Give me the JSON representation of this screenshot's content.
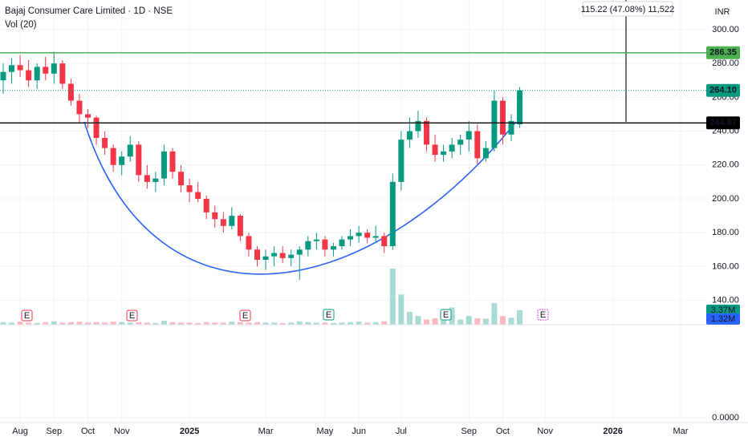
{
  "chart_data": {
    "type": "candlestick",
    "title": "Bajaj Consumer Care Limited · 1D · NSE",
    "subtitle": "Vol (20)",
    "currency": "INR",
    "measure_label": "115.22 (47.08%) 11,522",
    "categories": [
      null,
      null,
      "Aug",
      null,
      null,
      null,
      "Sep",
      null,
      null,
      null,
      "Oct",
      null,
      null,
      null,
      "Nov",
      null,
      null,
      null,
      null,
      null,
      null,
      null,
      "2025",
      null,
      null,
      null,
      null,
      null,
      null,
      null,
      null,
      "Mar",
      null,
      null,
      null,
      null,
      null,
      null,
      "May",
      null,
      null,
      null,
      "Jun",
      null,
      null,
      null,
      null,
      "Jul",
      null,
      null,
      null,
      null,
      null,
      null,
      null,
      "Sep",
      null,
      null,
      null,
      "Oct",
      null,
      null,
      null,
      null,
      "Nov",
      null,
      null,
      null,
      null,
      null,
      null,
      null,
      "2026",
      null,
      null,
      null,
      null,
      null,
      null,
      null,
      "Mar",
      null,
      null,
      null
    ],
    "open": [
      270,
      275,
      279,
      276,
      270,
      278,
      274,
      280,
      268,
      258,
      250,
      248,
      236,
      230,
      220,
      225,
      232,
      214,
      210,
      212,
      228,
      216,
      208,
      204,
      200,
      192,
      188,
      184,
      190,
      178,
      170,
      164,
      166,
      168,
      165,
      167,
      170,
      175,
      176,
      170,
      172,
      176,
      178,
      180,
      177,
      178,
      172,
      210,
      235,
      240,
      246,
      232,
      226,
      228,
      232,
      235,
      240,
      224,
      230,
      258,
      238,
      244,
      null,
      null,
      null,
      null,
      null,
      null,
      null,
      null,
      null,
      null,
      null,
      null,
      null,
      null,
      null,
      null,
      null,
      null,
      null,
      null,
      null,
      null
    ],
    "high": [
      280,
      283,
      285,
      282,
      280,
      284,
      287,
      282,
      271,
      262,
      253,
      249,
      240,
      232,
      228,
      237,
      234,
      220,
      216,
      232,
      230,
      220,
      212,
      210,
      202,
      196,
      192,
      195,
      191,
      180,
      172,
      170,
      172,
      172,
      170,
      172,
      178,
      180,
      178,
      174,
      178,
      182,
      184,
      182,
      184,
      180,
      215,
      240,
      248,
      252,
      248,
      238,
      232,
      236,
      238,
      246,
      244,
      234,
      264,
      260,
      250,
      266,
      null,
      null,
      null,
      null,
      null,
      null,
      null,
      null,
      null,
      null,
      null,
      null,
      null,
      null,
      null,
      null,
      null,
      null,
      null,
      null,
      null,
      null
    ],
    "low": [
      262,
      268,
      272,
      266,
      265,
      270,
      268,
      265,
      255,
      245,
      242,
      232,
      226,
      216,
      214,
      222,
      210,
      206,
      204,
      208,
      212,
      204,
      198,
      198,
      188,
      183,
      180,
      182,
      175,
      166,
      160,
      158,
      160,
      162,
      160,
      152,
      166,
      170,
      166,
      166,
      170,
      172,
      174,
      174,
      174,
      168,
      170,
      205,
      230,
      236,
      228,
      222,
      222,
      224,
      226,
      228,
      220,
      222,
      228,
      232,
      234,
      242,
      null,
      null,
      null,
      null,
      null,
      null,
      null,
      null,
      null,
      null,
      null,
      null,
      null,
      null,
      null,
      null,
      null,
      null,
      null,
      null,
      null,
      null
    ],
    "close": [
      275,
      279,
      276,
      270,
      278,
      274,
      280,
      268,
      258,
      250,
      248,
      236,
      230,
      220,
      225,
      232,
      214,
      210,
      212,
      228,
      216,
      208,
      204,
      200,
      192,
      188,
      184,
      190,
      178,
      170,
      164,
      166,
      168,
      165,
      167,
      170,
      175,
      176,
      170,
      172,
      176,
      178,
      180,
      177,
      178,
      172,
      210,
      235,
      240,
      246,
      232,
      226,
      228,
      232,
      235,
      240,
      224,
      230,
      258,
      238,
      246,
      264.1,
      null,
      null,
      null,
      null,
      null,
      null,
      null,
      null,
      null,
      null,
      null,
      null,
      null,
      null,
      null,
      null,
      null,
      null,
      null,
      null,
      null,
      null
    ],
    "volume": [
      0.6,
      0.5,
      0.7,
      0.5,
      0.4,
      0.6,
      0.8,
      0.5,
      0.6,
      0.7,
      0.5,
      0.6,
      0.5,
      0.7,
      0.6,
      0.5,
      0.6,
      0.5,
      0.4,
      0.9,
      0.6,
      0.5,
      0.5,
      0.4,
      0.6,
      0.5,
      0.5,
      0.7,
      0.6,
      0.5,
      0.6,
      0.5,
      0.5,
      0.4,
      0.5,
      0.8,
      0.6,
      0.5,
      0.5,
      0.4,
      0.5,
      0.6,
      0.7,
      0.5,
      0.6,
      0.8,
      13,
      7,
      3,
      2,
      1.2,
      1.5,
      1,
      4,
      1.2,
      2,
      1.5,
      1.4,
      5,
      2,
      1.6,
      3.37,
      null,
      null,
      null,
      null,
      null,
      null,
      null,
      null,
      null,
      null,
      null,
      null,
      null,
      null,
      null,
      null,
      null,
      null,
      null,
      null,
      null,
      null
    ],
    "up_color": "#089981",
    "down_color": "#f23645",
    "ylim": [
      125.6,
      317.5
    ],
    "yticks": [
      {
        "value": 300,
        "label": "300.00"
      },
      {
        "value": 280,
        "label": "280.00"
      },
      {
        "value": 260,
        "label": "260.00"
      },
      {
        "value": 240,
        "label": "240.00"
      },
      {
        "value": 220,
        "label": "220.00"
      },
      {
        "value": 200,
        "label": "200.00"
      },
      {
        "value": 180,
        "label": "180.00"
      },
      {
        "value": 160,
        "label": "160.00"
      },
      {
        "value": 140,
        "label": "140.00"
      }
    ],
    "price_lines": [
      {
        "value": 286.35,
        "label": "286.35",
        "color": "#4caf50",
        "style": "solid"
      },
      {
        "value": 264.1,
        "label": "264.10",
        "color": "#089981",
        "style": "dotted"
      },
      {
        "value": 244.87,
        "label": "244.87",
        "color": "#000000",
        "style": "solid"
      }
    ],
    "volume_tags": [
      {
        "value": 3.37,
        "label": "3.37M",
        "color": "#089981"
      },
      {
        "value": 1.32,
        "label": "1.32M",
        "color": "#2962ff"
      }
    ],
    "lower_pane_tick": {
      "value": 0,
      "label": "0.0000"
    },
    "events": [
      {
        "label": "E",
        "color": "#f23645"
      },
      {
        "label": "E",
        "color": "#f23645"
      },
      {
        "label": "E",
        "color": "#f23645"
      },
      {
        "label": "E",
        "color": "#089981"
      },
      {
        "label": "E",
        "color": "#089981"
      },
      {
        "label": "E",
        "color": "#e040fb"
      }
    ],
    "grid": true
  }
}
